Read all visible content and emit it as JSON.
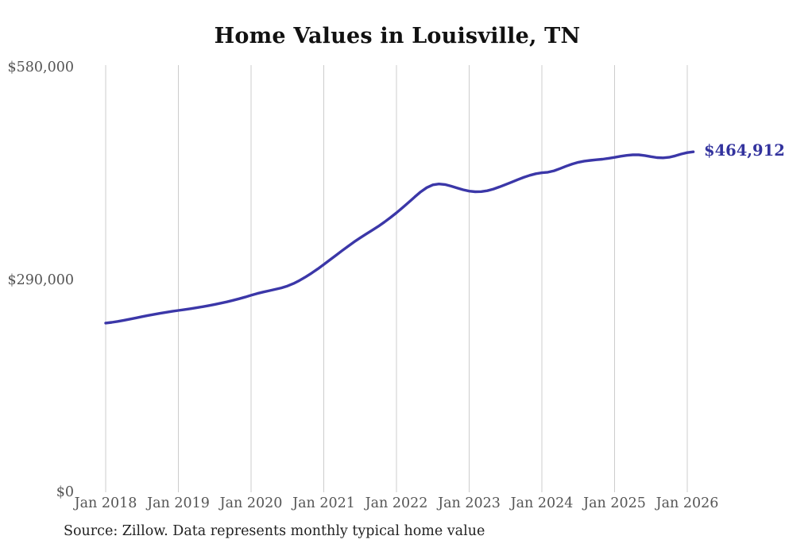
{
  "chart": {
    "title": "Home Values in Louisville, TN",
    "end_label": "$464,912",
    "source": "Source: Zillow. Data represents monthly typical home value"
  },
  "colors": {
    "line": "#3b37a8",
    "end_label_text": "#33339e",
    "grid": "#cccccc",
    "tick_text": "#555555",
    "title_text": "#111111",
    "source_text": "#222222",
    "background": "#ffffff"
  },
  "chart_data": {
    "type": "line",
    "title": "Home Values in Louisville, TN",
    "xlabel": "",
    "ylabel": "",
    "x_start": "Jan 2018",
    "x_end": "Feb 2026",
    "x_unit": "month",
    "x_tick_labels": [
      "Jan 2018",
      "Jan 2019",
      "Jan 2020",
      "Jan 2021",
      "Jan 2022",
      "Jan 2023",
      "Jan 2024",
      "Jan 2025",
      "Jan 2026"
    ],
    "x_tick_month_indices": [
      0,
      12,
      24,
      36,
      48,
      60,
      72,
      84,
      96
    ],
    "y_ticks": [
      {
        "label": "$580,000",
        "value": 580000
      },
      {
        "label": "$290,000",
        "value": 290000
      },
      {
        "label": "$0",
        "value": 0
      }
    ],
    "ylim": [
      0,
      580000
    ],
    "grid": "vertical-only",
    "legend": "none",
    "final_value": 464912,
    "final_value_label": "$464,912",
    "series": [
      {
        "name": "Monthly typical home value",
        "values": [
          231000,
          232000,
          233300,
          234800,
          236400,
          238100,
          239800,
          241400,
          242900,
          244400,
          245800,
          247100,
          248300,
          249500,
          250700,
          252000,
          253400,
          254900,
          256500,
          258200,
          260000,
          262000,
          264200,
          266500,
          269000,
          271300,
          273400,
          275300,
          277100,
          279100,
          281600,
          285000,
          289200,
          294000,
          299300,
          305000,
          311000,
          317200,
          323500,
          329800,
          335900,
          341800,
          347400,
          352700,
          357900,
          363100,
          368900,
          375100,
          381600,
          388500,
          395800,
          403200,
          410200,
          416000,
          419800,
          421000,
          420200,
          418000,
          415400,
          413000,
          411200,
          410300,
          410500,
          411800,
          414000,
          417000,
          420200,
          423500,
          426800,
          430000,
          432800,
          435000,
          436200,
          437000,
          439000,
          442000,
          445200,
          448200,
          450600,
          452200,
          453200,
          454000,
          454800,
          456000,
          457300,
          458800,
          460000,
          460800,
          460700,
          459800,
          458200,
          457000,
          456600,
          457400,
          459300,
          461800,
          463800,
          464912
        ]
      }
    ]
  }
}
